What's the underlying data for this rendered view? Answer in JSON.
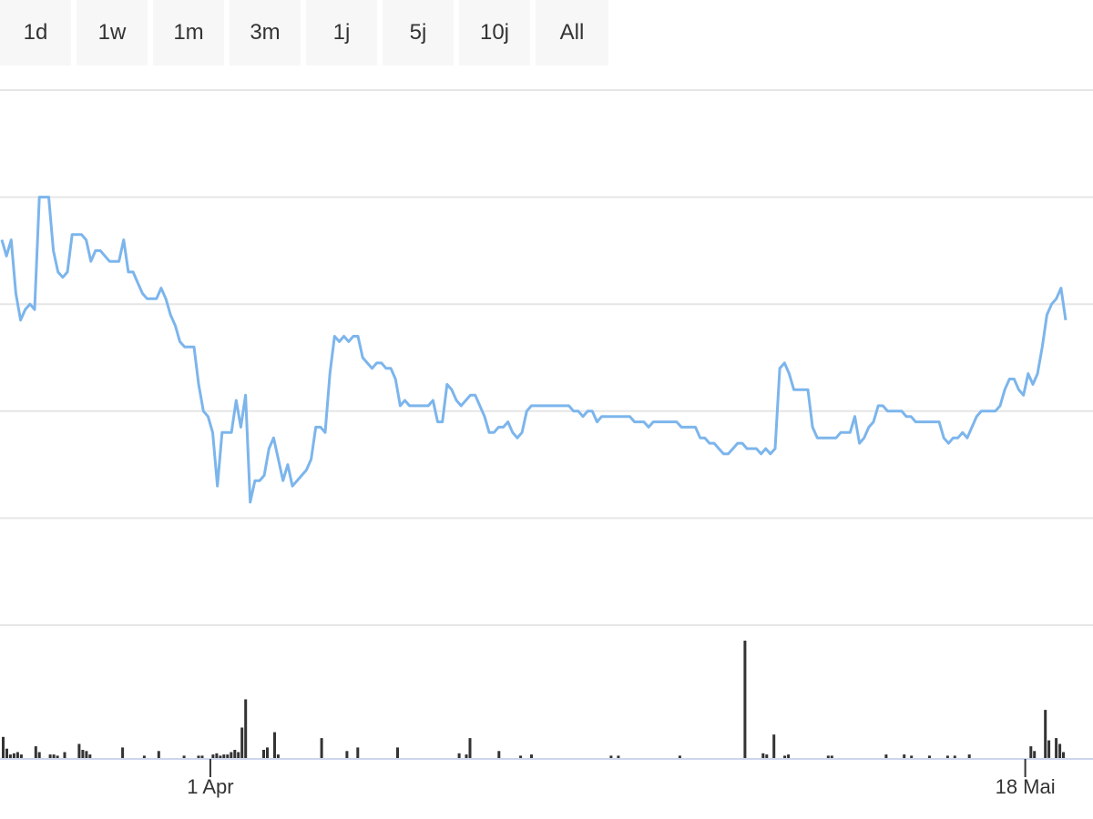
{
  "range_selector": {
    "buttons": [
      "1d",
      "1w",
      "1m",
      "3m",
      "1j",
      "5j",
      "10j",
      "All"
    ]
  },
  "colors": {
    "price_line": "#7cb5ec",
    "volume_bar": "#333333",
    "grid": "#e6e6e6",
    "button_bg": "#f7f7f7"
  },
  "chart_data": {
    "type": "line",
    "price_series": {
      "ylim": [
        0,
        100
      ],
      "grid_values": [
        0,
        20,
        40,
        60,
        80,
        100
      ],
      "values": [
        72,
        69,
        72,
        62,
        57,
        59,
        60,
        59,
        80,
        80,
        80,
        70,
        66,
        65,
        66,
        73,
        73,
        73,
        72,
        68,
        70,
        70,
        69,
        68,
        68,
        68,
        72,
        66,
        66,
        64,
        62,
        61,
        61,
        61,
        63,
        61,
        58,
        56,
        53,
        52,
        52,
        52,
        45,
        40,
        39,
        36,
        26,
        36,
        36,
        36,
        42,
        37,
        43,
        23,
        27,
        27,
        28,
        33,
        35,
        31,
        27,
        30,
        26,
        27,
        28,
        29,
        31,
        37,
        37,
        36,
        47,
        54,
        53,
        54,
        53,
        54,
        54,
        50,
        49,
        48,
        49,
        49,
        48,
        48,
        46,
        41,
        42,
        41,
        41,
        41,
        41,
        41,
        42,
        38,
        38,
        45,
        44,
        42,
        41,
        42,
        43,
        43,
        41,
        39,
        36,
        36,
        37,
        37,
        38,
        36,
        35,
        36,
        40,
        41,
        41,
        41,
        41,
        41,
        41,
        41,
        41,
        41,
        40,
        40,
        39,
        40,
        40,
        38,
        39,
        39,
        39,
        39,
        39,
        39,
        39,
        38,
        38,
        38,
        37,
        38,
        38,
        38,
        38,
        38,
        38,
        37,
        37,
        37,
        37,
        35,
        35,
        34,
        34,
        33,
        32,
        32,
        33,
        34,
        34,
        33,
        33,
        33,
        32,
        33,
        32,
        33,
        48,
        49,
        47,
        44,
        44,
        44,
        44,
        37,
        35,
        35,
        35,
        35,
        35,
        36,
        36,
        36,
        39,
        34,
        35,
        37,
        38,
        41,
        41,
        40,
        40,
        40,
        40,
        39,
        39,
        38,
        38,
        38,
        38,
        38,
        38,
        35,
        34,
        35,
        35,
        36,
        35,
        37,
        39,
        40,
        40,
        40,
        40,
        41,
        44,
        46,
        46,
        44,
        43,
        47,
        45,
        47,
        52,
        58,
        60,
        61,
        63,
        57
      ],
      "color": "#7cb5ec"
    },
    "volume_series": {
      "ylim": [
        0,
        100
      ],
      "values": [
        18,
        8,
        3,
        4,
        5,
        3,
        0,
        0,
        0,
        10,
        5,
        0,
        0,
        3,
        3,
        2,
        0,
        5,
        0,
        0,
        0,
        12,
        7,
        6,
        3,
        0,
        0,
        0,
        0,
        0,
        0,
        0,
        0,
        9,
        0,
        0,
        0,
        0,
        0,
        2,
        0,
        0,
        0,
        6,
        0,
        0,
        0,
        0,
        0,
        0,
        2,
        0,
        0,
        0,
        2,
        2,
        0,
        0,
        3,
        4,
        2,
        3,
        3,
        5,
        7,
        5,
        26,
        50,
        0,
        0,
        0,
        0,
        7,
        9,
        0,
        22,
        3,
        0,
        0,
        0,
        0,
        0,
        0,
        0,
        0,
        0,
        0,
        0,
        17,
        0,
        0,
        0,
        0,
        0,
        0,
        6,
        0,
        0,
        9,
        0,
        0,
        0,
        0,
        0,
        0,
        0,
        0,
        0,
        0,
        9,
        0,
        0,
        0,
        0,
        0,
        0,
        0,
        0,
        0,
        0,
        0,
        0,
        0,
        0,
        0,
        0,
        4,
        0,
        3,
        17,
        0,
        0,
        0,
        0,
        0,
        0,
        0,
        6,
        0,
        0,
        0,
        0,
        0,
        2,
        0,
        0,
        3,
        0,
        0,
        0,
        0,
        0,
        0,
        0,
        0,
        0,
        0,
        0,
        0,
        0,
        0,
        0,
        0,
        0,
        0,
        0,
        0,
        0,
        2,
        0,
        2,
        0,
        0,
        0,
        0,
        0,
        0,
        0,
        0,
        0,
        0,
        0,
        0,
        0,
        0,
        0,
        0,
        2,
        0,
        0,
        0,
        0,
        0,
        0,
        0,
        0,
        0,
        0,
        0,
        0,
        0,
        0,
        0,
        0,
        0,
        100,
        0,
        0,
        0,
        0,
        4,
        3,
        0,
        20,
        0,
        0,
        2,
        3,
        0,
        0,
        0,
        0,
        0,
        0,
        0,
        0,
        0,
        0,
        2,
        2,
        0,
        0,
        0,
        0,
        0,
        0,
        0,
        0,
        0,
        0,
        0,
        0,
        0,
        0,
        3,
        0,
        0,
        0,
        0,
        3,
        0,
        2,
        0,
        0,
        0,
        0,
        2,
        0,
        0,
        0,
        0,
        2,
        0,
        2,
        0,
        0,
        0,
        3,
        0,
        0,
        0,
        0,
        0,
        0,
        0,
        0,
        0,
        0,
        0,
        0,
        0,
        0,
        0,
        0,
        10,
        6,
        0,
        0,
        41,
        15,
        0,
        17,
        12,
        5
      ],
      "color": "#333333"
    },
    "x_ticks": [
      {
        "label": "1 Apr",
        "index": 0.196
      },
      {
        "label": "18 Mai",
        "index": 0.962
      }
    ],
    "grid": true,
    "legend": "none"
  }
}
